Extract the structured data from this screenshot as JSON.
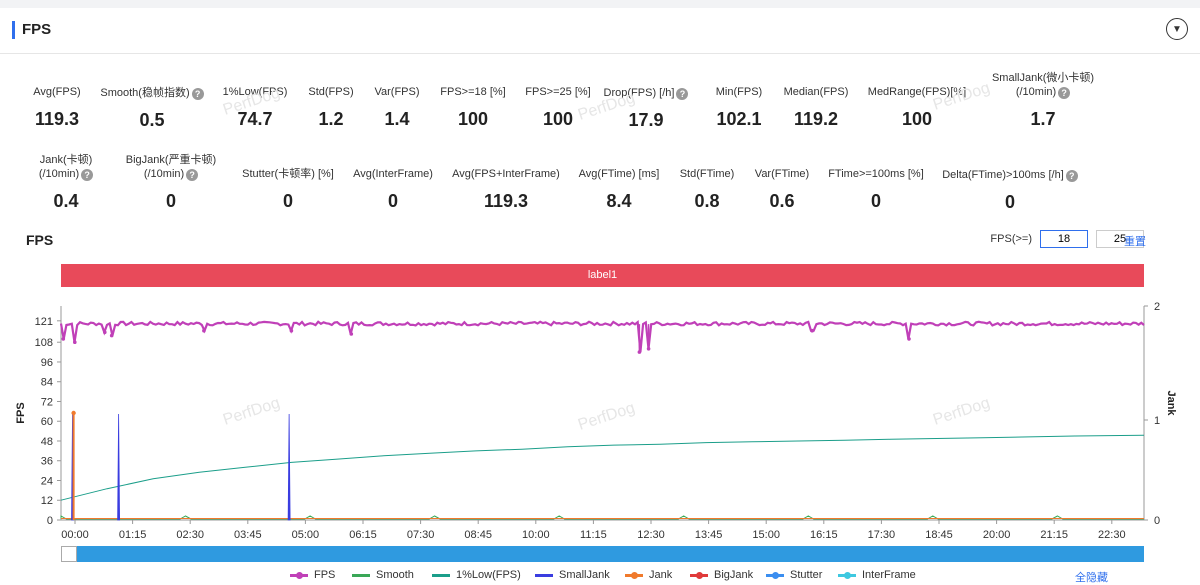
{
  "header": {
    "title": "FPS",
    "collapse_icon": "chevron-down-icon"
  },
  "metrics_row1": [
    {
      "label": "Avg(FPS)",
      "value": "119.3",
      "help": false
    },
    {
      "label": "Smooth(稳帧指数)",
      "value": "0.5",
      "help": true
    },
    {
      "label": "1%Low(FPS)",
      "value": "74.7",
      "help": false
    },
    {
      "label": "Std(FPS)",
      "value": "1.2",
      "help": false
    },
    {
      "label": "Var(FPS)",
      "value": "1.4",
      "help": false
    },
    {
      "label": "FPS>=18 [%]",
      "value": "100",
      "help": false
    },
    {
      "label": "FPS>=25 [%]",
      "value": "100",
      "help": false
    },
    {
      "label": "Drop(FPS) [/h]",
      "value": "17.9",
      "help": true
    },
    {
      "label": "Min(FPS)",
      "value": "102.1",
      "help": false
    },
    {
      "label": "Median(FPS)",
      "value": "119.2",
      "help": false
    },
    {
      "label": "MedRange(FPS)[%]",
      "value": "100",
      "help": false
    },
    {
      "label": "SmallJank(微小卡顿)",
      "label2": "(/10min)",
      "value": "1.7",
      "help": true
    }
  ],
  "metrics_row2": [
    {
      "label": "Jank(卡顿)",
      "label2": "(/10min)",
      "value": "0.4",
      "help": true
    },
    {
      "label": "BigJank(严重卡顿)",
      "label2": "(/10min)",
      "value": "0",
      "help": true
    },
    {
      "label": "Stutter(卡顿率) [%]",
      "value": "0",
      "help": false
    },
    {
      "label": "Avg(InterFrame)",
      "value": "0",
      "help": false
    },
    {
      "label": "Avg(FPS+InterFrame)",
      "value": "119.3",
      "help": false
    },
    {
      "label": "Avg(FTime) [ms]",
      "value": "8.4",
      "help": false
    },
    {
      "label": "Std(FTime)",
      "value": "0.8",
      "help": false
    },
    {
      "label": "Var(FTime)",
      "value": "0.6",
      "help": false
    },
    {
      "label": "FTime>=100ms [%]",
      "value": "0",
      "help": false
    },
    {
      "label": "Delta(FTime)>100ms [/h]",
      "value": "0",
      "help": true
    }
  ],
  "chart_section": {
    "title": "FPS",
    "threshold_label": "FPS(>=)",
    "threshold1": "18",
    "threshold2": "25",
    "reset_label": "重置",
    "label_bar": "label1",
    "watermark": "PerfDog",
    "hide_all_label": "全隐藏"
  },
  "chart_data": {
    "type": "line",
    "ylabel": "FPS",
    "y2label": "Jank",
    "ylim": [
      0,
      130
    ],
    "y_ticks": [
      0,
      12,
      24,
      36,
      48,
      60,
      72,
      84,
      96,
      108,
      121
    ],
    "y2_ticks": [
      0,
      1,
      2
    ],
    "x_ticks": [
      "00:00",
      "01:15",
      "02:30",
      "03:45",
      "05:00",
      "06:15",
      "07:30",
      "08:45",
      "10:00",
      "11:15",
      "12:30",
      "13:45",
      "15:00",
      "16:15",
      "17:30",
      "18:45",
      "20:00",
      "21:15",
      "22:30"
    ],
    "series": [
      {
        "name": "FPS",
        "color": "#c040b8",
        "avg": 119.3,
        "dips": [
          [
            0.05,
            110
          ],
          [
            0.3,
            108
          ],
          [
            0.95,
            114
          ],
          [
            1.1,
            112
          ],
          [
            3.1,
            115
          ],
          [
            5.0,
            115
          ],
          [
            6.3,
            113
          ],
          [
            12.55,
            102
          ],
          [
            12.75,
            104
          ],
          [
            16.3,
            115
          ],
          [
            18.4,
            110
          ]
        ]
      },
      {
        "name": "Smooth",
        "color": "#3aa757"
      },
      {
        "name": "1%Low(FPS)",
        "color": "#1b9e8a",
        "points": [
          [
            0,
            12
          ],
          [
            1.0,
            19
          ],
          [
            2.0,
            25
          ],
          [
            3.0,
            29
          ],
          [
            4.0,
            32
          ],
          [
            5.0,
            35
          ],
          [
            6.0,
            37
          ],
          [
            7.0,
            39
          ],
          [
            8.0,
            40.5
          ],
          [
            9.0,
            42
          ],
          [
            10.0,
            43
          ],
          [
            11.0,
            44.5
          ],
          [
            12.0,
            45.5
          ],
          [
            13.0,
            46
          ],
          [
            14.0,
            47
          ],
          [
            15.0,
            47.5
          ],
          [
            16.0,
            48
          ],
          [
            17.0,
            48.5
          ],
          [
            18.0,
            49
          ],
          [
            19.0,
            49.5
          ],
          [
            20.0,
            50
          ],
          [
            21.0,
            50.5
          ],
          [
            22.0,
            51
          ],
          [
            23.5,
            51.5
          ]
        ]
      },
      {
        "name": "SmallJank",
        "color": "#3a3de0",
        "spikes": [
          0.25,
          1.25,
          4.95
        ]
      },
      {
        "name": "Jank",
        "color": "#f07a2c",
        "spikes": [
          0.1
        ]
      },
      {
        "name": "BigJank",
        "color": "#e03a3a"
      },
      {
        "name": "Stutter",
        "color": "#3b8ef0"
      },
      {
        "name": "InterFrame",
        "color": "#3ec8e0"
      }
    ]
  }
}
